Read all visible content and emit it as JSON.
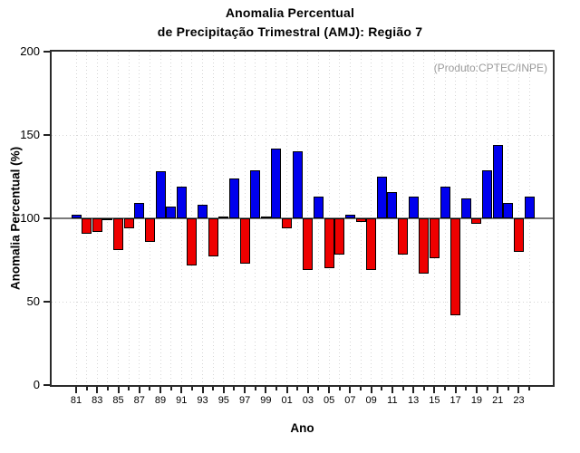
{
  "header": {
    "title_line1": "Anomalia Percentual",
    "title_line2": "de Precipitação Trimestral (AMJ): Região 7"
  },
  "chart_data": {
    "type": "bar",
    "title": "Anomalia Percentual de Precipitação Trimestral (AMJ): Região 7",
    "annotation": "(Produto:CPTEC/INPE)",
    "xlabel": "Ano",
    "ylabel": "Anomalia Percentual (%)",
    "ylim": [
      0,
      200
    ],
    "yticks": [
      0,
      50,
      100,
      150,
      200
    ],
    "baseline": 100,
    "grid": "dotted",
    "legend": "none",
    "bar_colors": {
      "above": "#0000ee",
      "below": "#ee0000"
    },
    "years": [
      1981,
      1982,
      1983,
      1984,
      1985,
      1986,
      1987,
      1988,
      1989,
      1990,
      1991,
      1992,
      1993,
      1994,
      1995,
      1996,
      1997,
      1998,
      1999,
      2000,
      2001,
      2002,
      2003,
      2004,
      2005,
      2006,
      2007,
      2008,
      2009,
      2010,
      2011,
      2012,
      2013,
      2014,
      2015,
      2016,
      2017,
      2018,
      2019,
      2020,
      2021,
      2022,
      2023,
      2024
    ],
    "values": [
      102,
      91,
      92,
      99,
      81,
      94,
      109,
      86,
      128,
      107,
      119,
      72,
      108,
      77,
      101,
      124,
      73,
      129,
      101,
      142,
      94,
      140,
      69,
      113,
      70,
      78,
      102,
      98,
      69,
      125,
      116,
      78,
      113,
      67,
      76,
      119,
      42,
      112,
      97,
      129,
      144,
      109,
      80,
      113
    ],
    "x_tick_labels": [
      "81",
      "83",
      "85",
      "87",
      "89",
      "91",
      "93",
      "95",
      "97",
      "99",
      "01",
      "03",
      "05",
      "07",
      "09",
      "11",
      "13",
      "15",
      "17",
      "19",
      "21",
      "23"
    ]
  }
}
